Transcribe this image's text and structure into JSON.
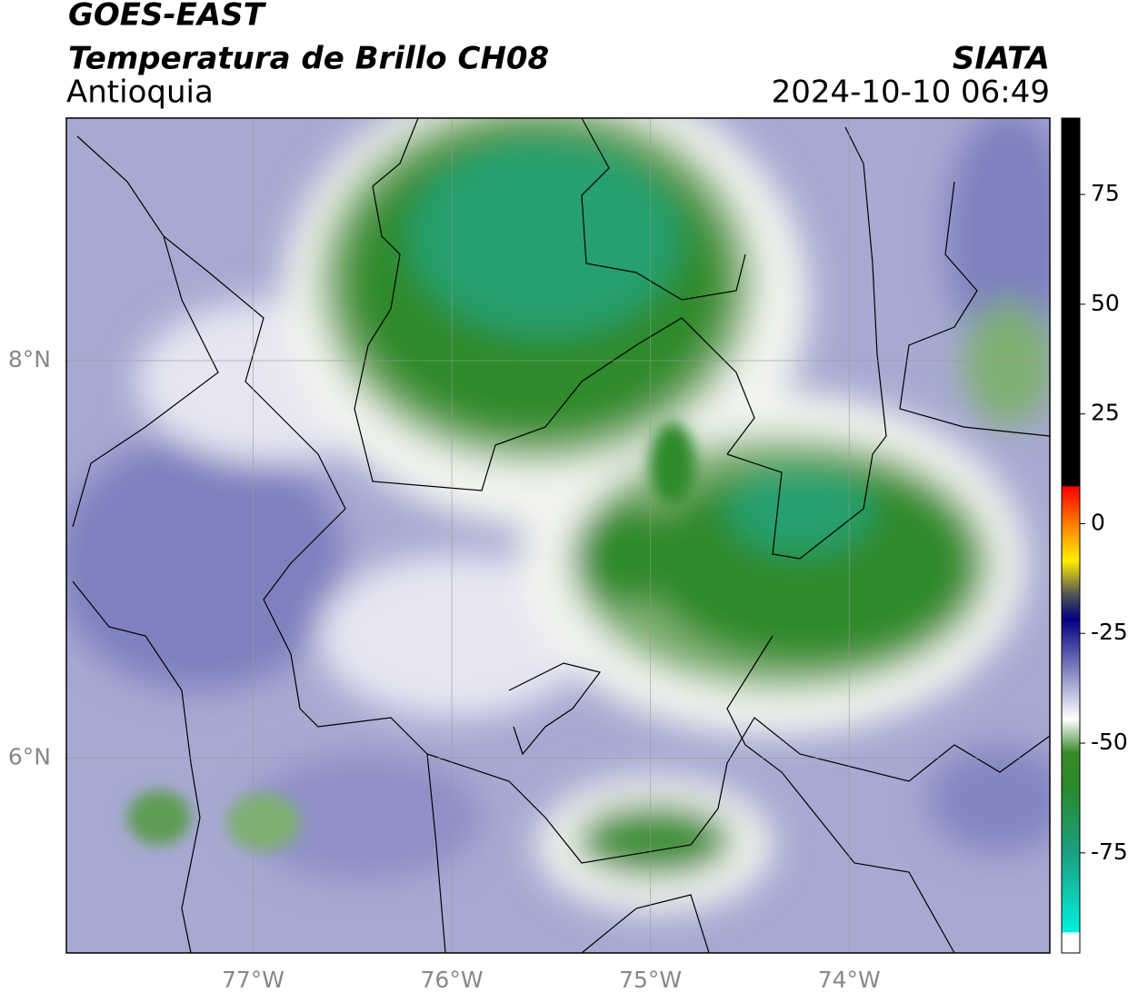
{
  "header": {
    "title": "GOES-EAST",
    "subtitle": "Temperatura de Brillo CH08",
    "region": "Antioquia",
    "source": "SIATA",
    "datetime": "2024-10-10 06:49"
  },
  "map": {
    "xlim": [
      -77.94,
      -72.99
    ],
    "ylim": [
      5.02,
      9.22
    ],
    "grid": true,
    "xticks": [
      {
        "value": -77,
        "label": "77°W"
      },
      {
        "value": -76,
        "label": "76°W"
      },
      {
        "value": -75,
        "label": "75°W"
      },
      {
        "value": -74,
        "label": "74°W"
      }
    ],
    "yticks": [
      {
        "value": 6,
        "label": "6°N"
      },
      {
        "value": 8,
        "label": "8°N"
      }
    ]
  },
  "colorbar": {
    "lim": [
      -97.8,
      92.4
    ],
    "ticks": [
      75,
      50,
      25,
      0,
      -25,
      -50,
      -75
    ]
  }
}
